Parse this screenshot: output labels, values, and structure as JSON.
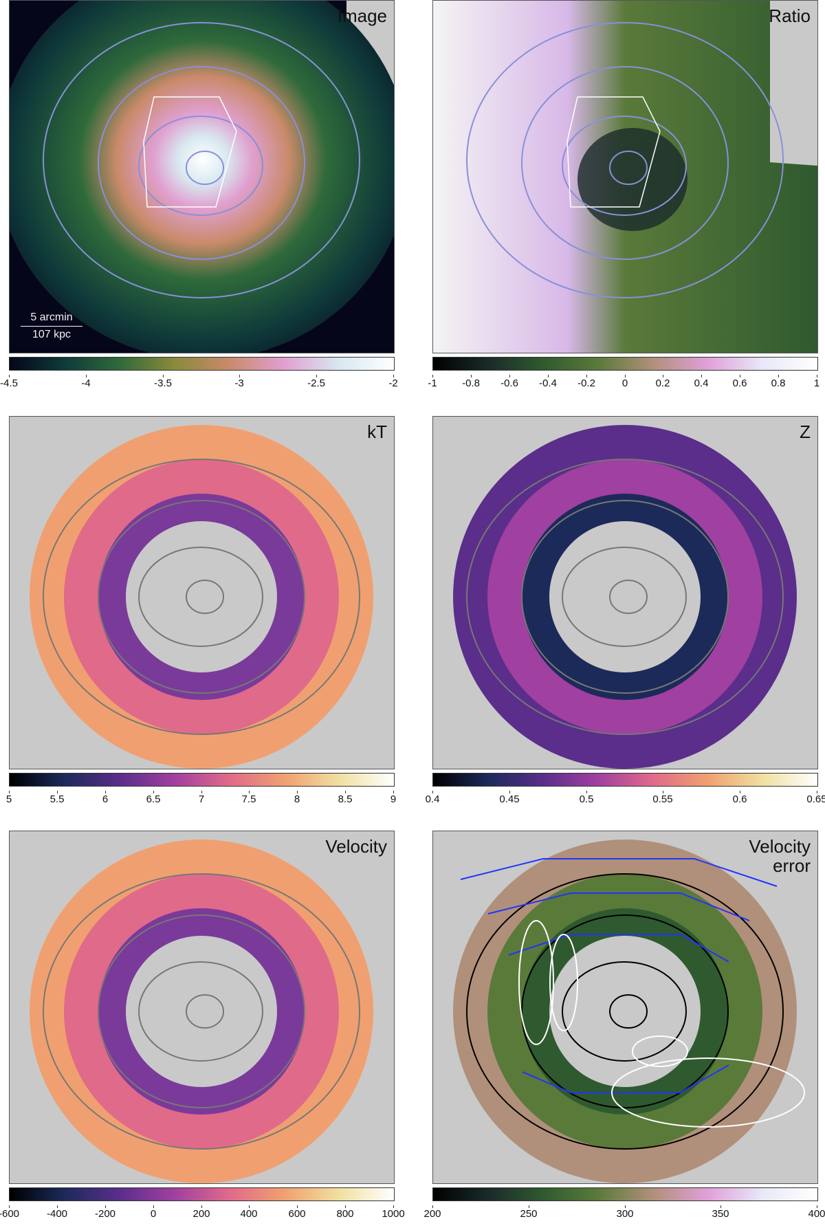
{
  "panels": [
    {
      "key": "image",
      "label": "Image",
      "colorbar": {
        "gradient": [
          "#05061a",
          "#0f3a3a",
          "#2f6a3a",
          "#8a8a3a",
          "#c98a6a",
          "#e0a0d0",
          "#d8e8f0",
          "#ffffff"
        ],
        "ticks": [
          "-4.5",
          "-4",
          "-3.5",
          "-3",
          "-2.5",
          "-2"
        ]
      }
    },
    {
      "key": "ratio",
      "label": "Ratio",
      "colorbar": {
        "gradient": [
          "#000000",
          "#1a2a2a",
          "#2f5a2f",
          "#5a7a3a",
          "#b0907a",
          "#e0a0d8",
          "#e8e8f8",
          "#ffffff"
        ],
        "ticks": [
          "-1",
          "-0.8",
          "-0.6",
          "-0.4",
          "-0.2",
          "0",
          "0.2",
          "0.4",
          "0.6",
          "0.8",
          "1"
        ]
      }
    },
    {
      "key": "kt",
      "label": "kT",
      "colorbar": {
        "gradient": [
          "#000000",
          "#1c2a5a",
          "#5a2e8a",
          "#a040a0",
          "#e06a8a",
          "#f0a070",
          "#f0e0a0",
          "#ffffff"
        ],
        "ticks": [
          "5",
          "5.5",
          "6",
          "6.5",
          "7",
          "7.5",
          "8",
          "8.5",
          "9"
        ]
      }
    },
    {
      "key": "z",
      "label": "Z",
      "colorbar": {
        "gradient": [
          "#000000",
          "#1c2a5a",
          "#5a2e8a",
          "#a040a0",
          "#e06a8a",
          "#f0a070",
          "#f0e0a0",
          "#ffffff"
        ],
        "ticks": [
          "0.4",
          "0.45",
          "0.5",
          "0.55",
          "0.6",
          "0.65"
        ]
      }
    },
    {
      "key": "velocity",
      "label": "Velocity",
      "colorbar": {
        "gradient": [
          "#000000",
          "#1c2a5a",
          "#5a2e8a",
          "#a040a0",
          "#e06a8a",
          "#f0a070",
          "#f0e0a0",
          "#ffffff"
        ],
        "ticks": [
          "-600",
          "-400",
          "-200",
          "0",
          "200",
          "400",
          "600",
          "800",
          "1000"
        ]
      }
    },
    {
      "key": "velocity_error",
      "label": "Velocity\nerror",
      "colorbar": {
        "gradient": [
          "#000000",
          "#1a2a2a",
          "#2f5a2f",
          "#5a7a3a",
          "#b0907a",
          "#e0a0d8",
          "#e8e8f8",
          "#ffffff"
        ],
        "ticks": [
          "200",
          "250",
          "300",
          "350",
          "400"
        ]
      }
    }
  ],
  "scalebar": {
    "top_text": "5 arcmin",
    "bottom_text": "107 kpc"
  }
}
